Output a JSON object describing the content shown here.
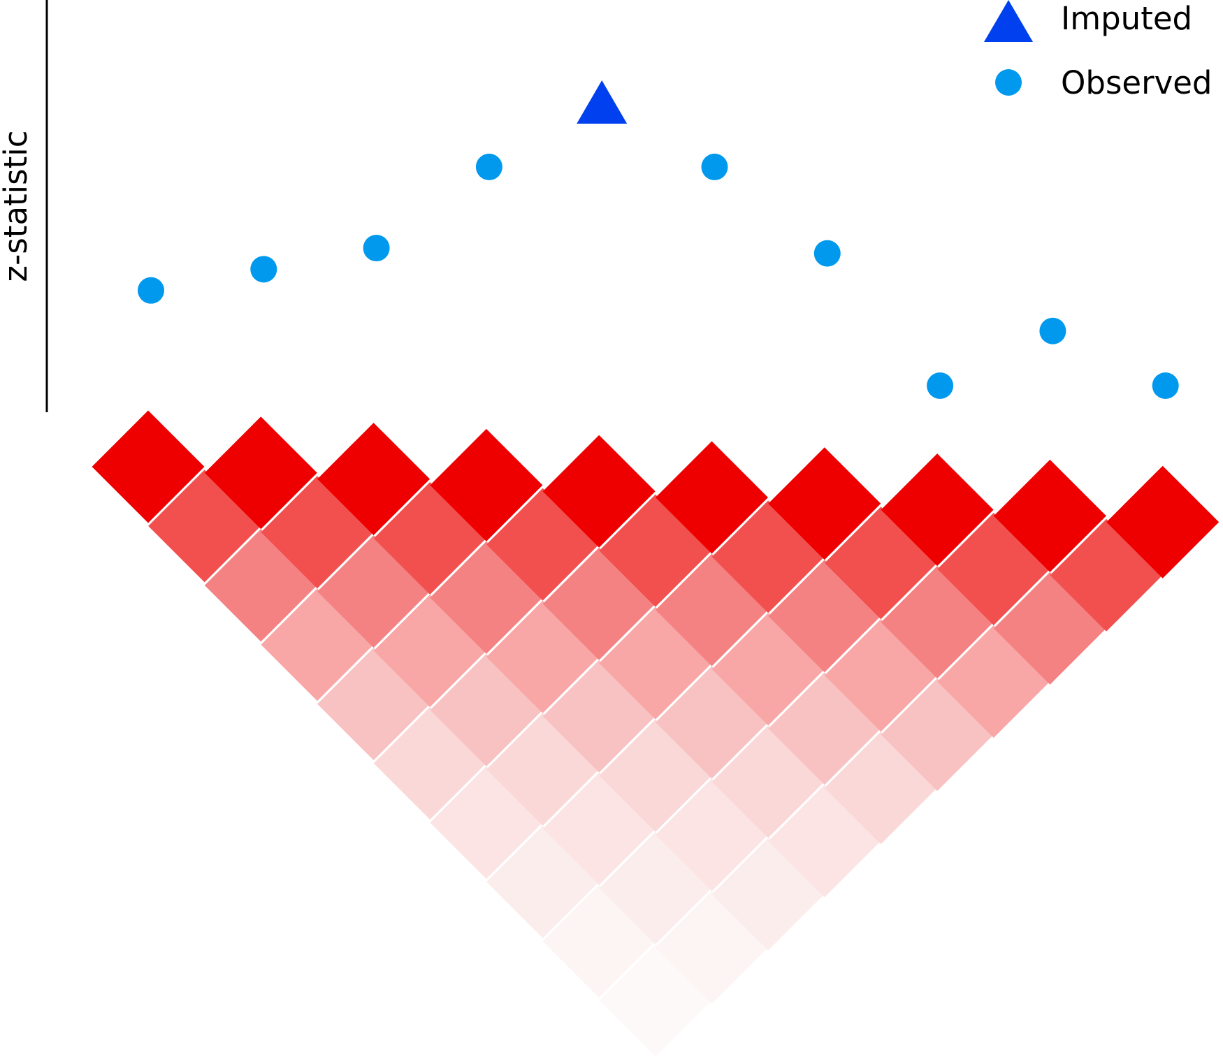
{
  "axis": {
    "y_label": "z-statistic"
  },
  "legend": {
    "items": [
      {
        "label": "Imputed",
        "marker": "triangle",
        "color": "#0040EE"
      },
      {
        "label": "Observed",
        "marker": "circle",
        "color": "#0099EE"
      }
    ]
  },
  "chart_data": {
    "type": "scatter",
    "ylabel": "z-statistic",
    "grid": false,
    "legend_position": "top-right",
    "series": [
      {
        "name": "Observed",
        "marker": "circle",
        "color": "#0099EE",
        "points": [
          {
            "x": 1,
            "z": 2.7
          },
          {
            "x": 2,
            "z": 3.3
          },
          {
            "x": 3,
            "z": 3.9
          },
          {
            "x": 4,
            "z": 6.2
          },
          {
            "x": 6,
            "z": 6.2
          },
          {
            "x": 7,
            "z": 3.75
          },
          {
            "x": 8,
            "z": 0.0
          },
          {
            "x": 9,
            "z": 1.55
          },
          {
            "x": 10,
            "z": 0.0
          }
        ]
      },
      {
        "name": "Imputed",
        "marker": "triangle",
        "color": "#0040EE",
        "points": [
          {
            "x": 5,
            "z": 8.0
          }
        ]
      }
    ]
  },
  "ld_matrix": {
    "colors_by_distance": [
      "#EE0000",
      "#F24F4F",
      "#F58282",
      "#F8A6A6",
      "#F9C2C2",
      "#FBD8D8",
      "#FCE4E4",
      "#FCEDED",
      "#FDF4F4",
      "#FEF9F9"
    ]
  }
}
